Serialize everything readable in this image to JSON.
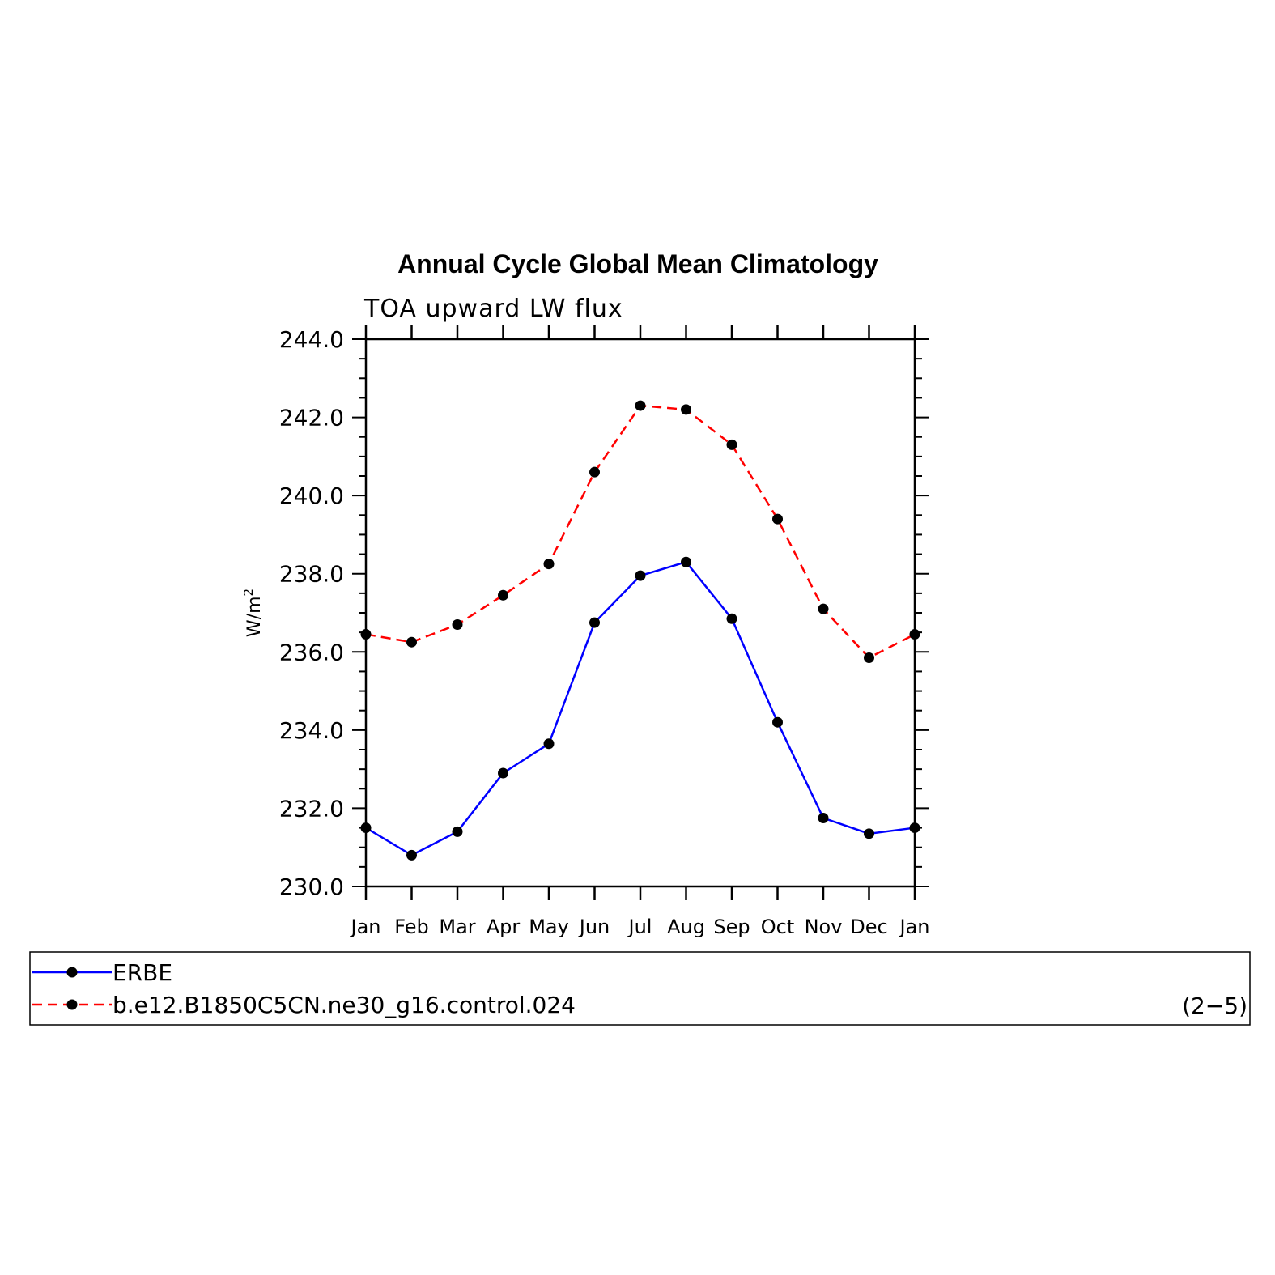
{
  "chart_data": {
    "type": "line",
    "title": "Annual Cycle Global Mean Climatology",
    "subtitle": "TOA upward LW flux",
    "ylabel": "W/m",
    "ylabel_superscript": "2",
    "ylim": [
      230.0,
      244.0
    ],
    "yticks": [
      "230.0",
      "232.0",
      "234.0",
      "236.0",
      "238.0",
      "240.0",
      "242.0",
      "244.0"
    ],
    "categories": [
      "Jan",
      "Feb",
      "Mar",
      "Apr",
      "May",
      "Jun",
      "Jul",
      "Aug",
      "Sep",
      "Oct",
      "Nov",
      "Dec",
      "Jan"
    ],
    "series": [
      {
        "name": "ERBE",
        "color": "#0000ff",
        "dash": "solid",
        "values": [
          231.5,
          230.8,
          231.4,
          232.9,
          233.65,
          236.75,
          237.95,
          238.3,
          236.85,
          234.2,
          231.75,
          231.35,
          231.5
        ]
      },
      {
        "name": "b.e12.B1850C5CN.ne30_g16.control.024",
        "color": "#ff0000",
        "dash": "dashed",
        "values": [
          236.45,
          236.25,
          236.7,
          237.45,
          238.25,
          240.6,
          242.3,
          242.2,
          241.3,
          239.4,
          237.1,
          235.85,
          236.45
        ]
      }
    ],
    "marker_color": "#000000",
    "legend_position": "bottom",
    "annotation": "(2−5)"
  }
}
